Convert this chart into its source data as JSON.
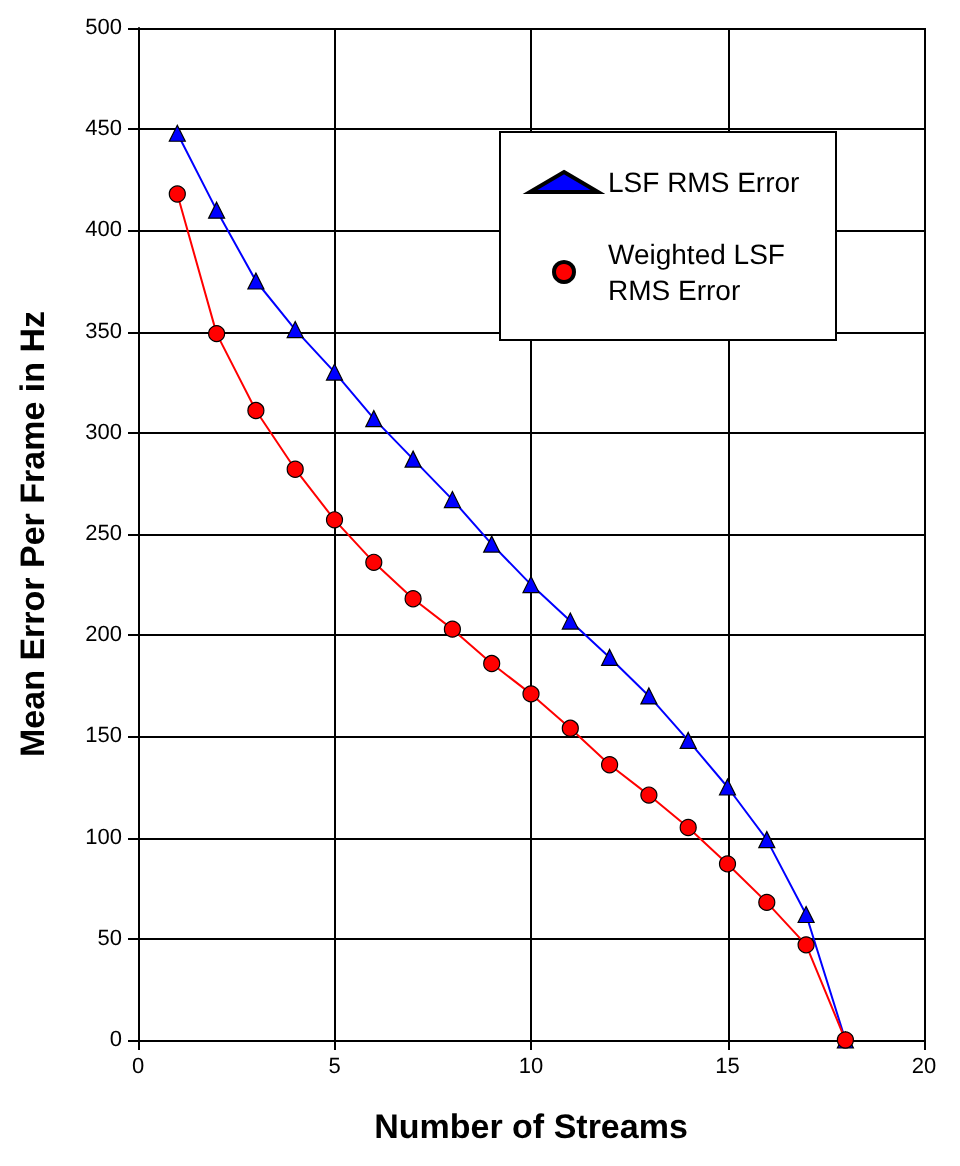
{
  "chart_data": {
    "type": "line",
    "xlabel": "Number of Streams",
    "ylabel": "Mean Error Per Frame in Hz",
    "x": [
      1,
      2,
      3,
      4,
      5,
      6,
      7,
      8,
      9,
      10,
      11,
      12,
      13,
      14,
      15,
      16,
      17,
      18
    ],
    "series": [
      {
        "name": "LSF RMS Error",
        "color": "#0000ff",
        "marker": "triangle",
        "values": [
          448,
          410,
          375,
          351,
          330,
          307,
          287,
          267,
          245,
          225,
          207,
          189,
          170,
          148,
          125,
          99,
          62,
          0
        ]
      },
      {
        "name": "Weighted LSF RMS Error",
        "color": "#ff0000",
        "marker": "circle",
        "values": [
          418,
          349,
          311,
          282,
          257,
          236,
          218,
          203,
          186,
          171,
          154,
          136,
          121,
          105,
          87,
          68,
          47,
          0
        ]
      }
    ],
    "xlim": [
      0,
      20
    ],
    "xticks": [
      0,
      5,
      10,
      15,
      20
    ],
    "ylim": [
      0,
      500
    ],
    "yticks": [
      0,
      50,
      100,
      150,
      200,
      250,
      300,
      350,
      400,
      450,
      500
    ],
    "grid": true,
    "legend": "top right"
  }
}
